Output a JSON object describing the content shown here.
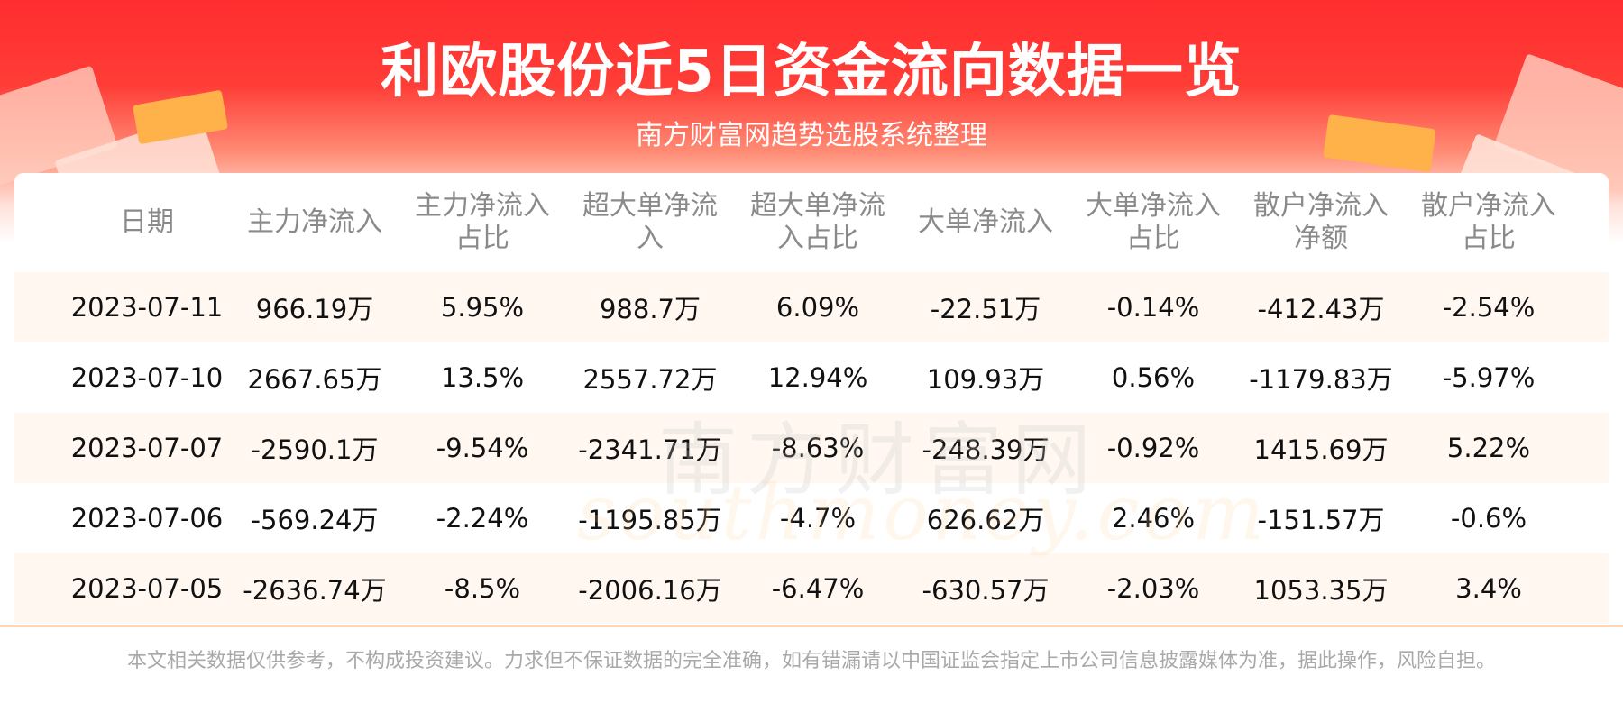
{
  "title": "利欧股份近5日资金流向数据一览",
  "subtitle": "南方财富网趋势选股系统整理",
  "table": {
    "headers": [
      [
        "日期"
      ],
      [
        "主力净流入"
      ],
      [
        "主力净流入",
        "占比"
      ],
      [
        "超大单净流",
        "入"
      ],
      [
        "超大单净流",
        "入占比"
      ],
      [
        "大单净流入"
      ],
      [
        "大单净流入",
        "占比"
      ],
      [
        "散户净流入",
        "净额"
      ],
      [
        "散户净流入",
        "占比"
      ]
    ],
    "rows": [
      [
        "2023-07-11",
        "966.19万",
        "5.95%",
        "988.7万",
        "6.09%",
        "-22.51万",
        "-0.14%",
        "-412.43万",
        "-2.54%"
      ],
      [
        "2023-07-10",
        "2667.65万",
        "13.5%",
        "2557.72万",
        "12.94%",
        "109.93万",
        "0.56%",
        "-1179.83万",
        "-5.97%"
      ],
      [
        "2023-07-07",
        "-2590.1万",
        "-9.54%",
        "-2341.71万",
        "-8.63%",
        "-248.39万",
        "-0.92%",
        "1415.69万",
        "5.22%"
      ],
      [
        "2023-07-06",
        "-569.24万",
        "-2.24%",
        "-1195.85万",
        "-4.7%",
        "626.62万",
        "2.46%",
        "-151.57万",
        "-0.6%"
      ],
      [
        "2023-07-05",
        "-2636.74万",
        "-8.5%",
        "-2006.16万",
        "-6.47%",
        "-630.57万",
        "-2.03%",
        "1053.35万",
        "3.4%"
      ]
    ]
  },
  "watermark": {
    "cn": "南方财富网",
    "en": "southmoney.com"
  },
  "disclaimer": "本文相关数据仅供参考，不构成投资建议。力求但不保证数据的完全准确，如有错漏请以中国证监会指定上市公司信息披露媒体为准，据此操作，风险自担。",
  "colors": {
    "banner_red": "#ff2d2f",
    "alt_row": "#fff7f0",
    "header_text": "#8a8a8a",
    "body_text": "#111111",
    "disclaimer_text": "#a9a9a9"
  }
}
